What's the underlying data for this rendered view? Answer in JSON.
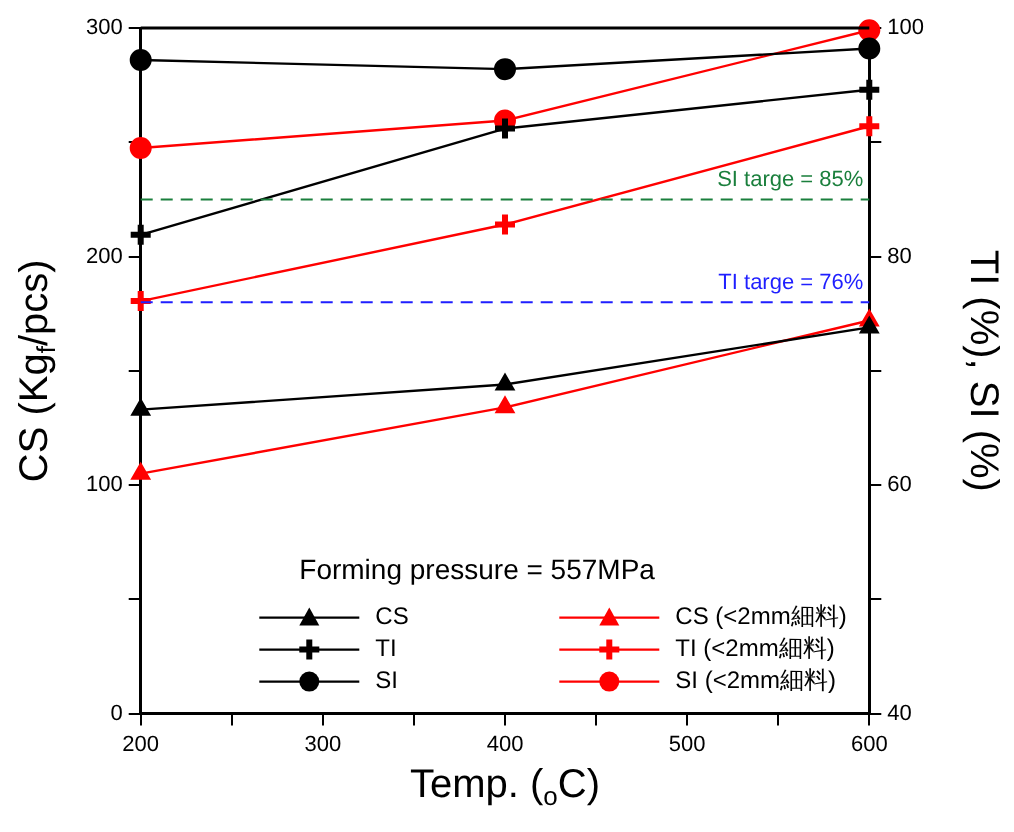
{
  "chart_data": {
    "type": "line",
    "xlabel": "Temp. ($_{o}$C)",
    "ylabel": "CS (Kg$_{f}$/pcs)",
    "y2label": "TI (%), SI (%)",
    "legend_title": "Forming pressure = 557MPa",
    "x": [
      200,
      400,
      600
    ],
    "series": [
      {
        "name": "CS",
        "color": "#000000",
        "marker": "triangle",
        "values": [
          133,
          144,
          169
        ]
      },
      {
        "name": "TI",
        "color": "#000000",
        "marker": "cross",
        "axis": "y2",
        "values": [
          81.9,
          91.2,
          94.6
        ]
      },
      {
        "name": "SI",
        "color": "#000000",
        "marker": "circle",
        "axis": "y2",
        "values": [
          97.2,
          96.4,
          98.2
        ]
      },
      {
        "name": "CS (<2mm細料)",
        "color": "#ff0000",
        "marker": "triangle",
        "values": [
          105,
          134,
          172
        ]
      },
      {
        "name": "TI (<2mm細料)",
        "color": "#ff0000",
        "marker": "cross",
        "axis": "y2",
        "values": [
          76.1,
          82.8,
          91.4
        ]
      },
      {
        "name": "SI (<2mm細料)",
        "color": "#ff0000",
        "marker": "circle",
        "axis": "y2",
        "values": [
          89.5,
          91.9,
          99.8
        ]
      }
    ],
    "xlim": [
      200,
      600
    ],
    "xticks": [
      200,
      {
        "value": 250,
        "label": null
      },
      300,
      {
        "value": 350,
        "label": null
      },
      400,
      {
        "value": 450,
        "label": null
      },
      500,
      {
        "value": 550,
        "label": null
      },
      600
    ],
    "ylim": [
      0,
      300
    ],
    "yticks": [
      0,
      {
        "value": 50,
        "label": null
      },
      100,
      {
        "value": 150,
        "label": null
      },
      200,
      {
        "value": 250,
        "label": null
      },
      300
    ],
    "y2lim": [
      40,
      100
    ],
    "y2ticks": [
      40,
      {
        "value": 50,
        "label": null
      },
      60,
      {
        "value": 70,
        "label": null
      },
      80,
      {
        "value": 90,
        "label": null
      },
      100
    ],
    "ref_lines": [
      {
        "axis": "y2",
        "value": 85,
        "label": "SI targe = 85%",
        "color": "#1a7f3c",
        "line_style": "dashed"
      },
      {
        "axis": "y2",
        "value": 76,
        "label": "TI targe = 76%",
        "color": "#1f1fff",
        "line_style": "dashed"
      }
    ],
    "grid": false,
    "legend": "bottom right",
    "line_style": "solid"
  }
}
